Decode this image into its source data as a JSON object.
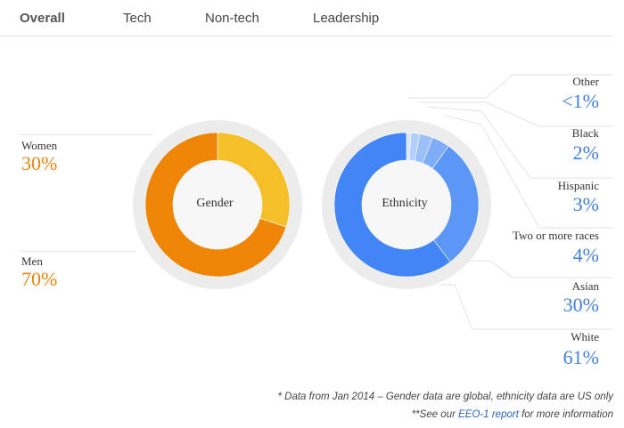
{
  "tabs": [
    {
      "label": "Overall",
      "active": true
    },
    {
      "label": "Tech",
      "active": false
    },
    {
      "label": "Non-tech",
      "active": false
    },
    {
      "label": "Leadership",
      "active": false
    }
  ],
  "colors": {
    "women": "#f5bf2a",
    "men": "#ee8506",
    "ring_bg": "#ececec",
    "center": "#f7f7f7",
    "ethnicity_main": "#4285f4",
    "ethnicity_value_text": "#3f7fe0",
    "gender_value_text": "#e8850d"
  },
  "chart_data": [
    {
      "type": "pie",
      "variant": "donut",
      "center_label": "Gender",
      "slices": [
        {
          "label": "Women",
          "display": "30%",
          "value": 30,
          "color": "#f5bf2a"
        },
        {
          "label": "Men",
          "display": "70%",
          "value": 70,
          "color": "#ee8506"
        }
      ]
    },
    {
      "type": "pie",
      "variant": "donut",
      "center_label": "Ethnicity",
      "slices": [
        {
          "label": "Other",
          "display": "<1%",
          "value": 1,
          "color": "#d6e5fd"
        },
        {
          "label": "Black",
          "display": "2%",
          "value": 2,
          "color": "#b3cffb"
        },
        {
          "label": "Hispanic",
          "display": "3%",
          "value": 3,
          "color": "#9bbff9"
        },
        {
          "label": "Two or more races",
          "display": "4%",
          "value": 4,
          "color": "#7eacf7"
        },
        {
          "label": "Asian",
          "display": "30%",
          "value": 30,
          "color": "#5d97f6"
        },
        {
          "label": "White",
          "display": "61%",
          "value": 61,
          "color": "#4285f4"
        }
      ]
    }
  ],
  "footnotes": {
    "line1": "* Data from Jan 2014 – Gender data are global, ethnicity data are US only",
    "line2_prefix": "**See our ",
    "line2_link": "EEO-1 report",
    "line2_suffix": " for more information"
  }
}
